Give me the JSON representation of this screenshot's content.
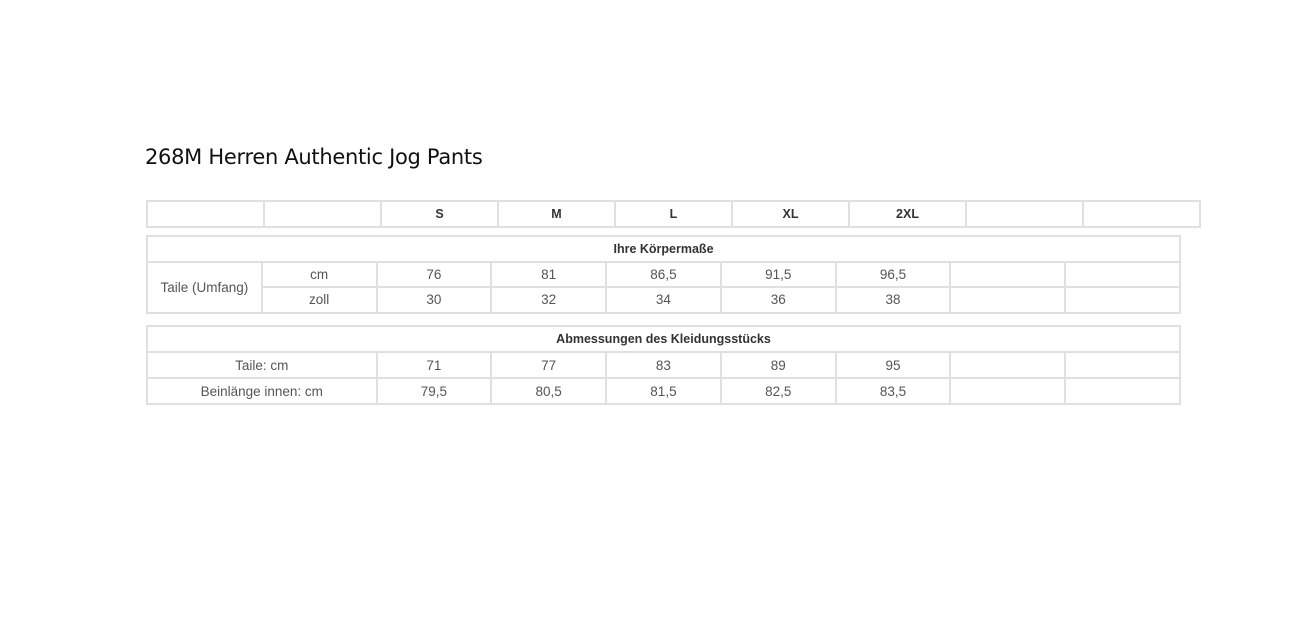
{
  "title": "268M Herren Authentic Jog Pants",
  "sizes": [
    "S",
    "M",
    "L",
    "XL",
    "2XL"
  ],
  "body": {
    "heading": "Ihre Körpermaße",
    "label": "Taile (Umfang)",
    "rows": [
      {
        "unit": "cm",
        "values": [
          "76",
          "81",
          "86,5",
          "91,5",
          "96,5"
        ]
      },
      {
        "unit": "zoll",
        "values": [
          "30",
          "32",
          "34",
          "36",
          "38"
        ]
      }
    ]
  },
  "garment": {
    "heading": "Abmessungen des Kleidungsstücks",
    "rows": [
      {
        "label": "Taile: cm",
        "values": [
          "71",
          "77",
          "83",
          "89",
          "95"
        ]
      },
      {
        "label": "Beinlänge innen: cm",
        "values": [
          "79,5",
          "80,5",
          "81,5",
          "82,5",
          "83,5"
        ]
      }
    ]
  }
}
